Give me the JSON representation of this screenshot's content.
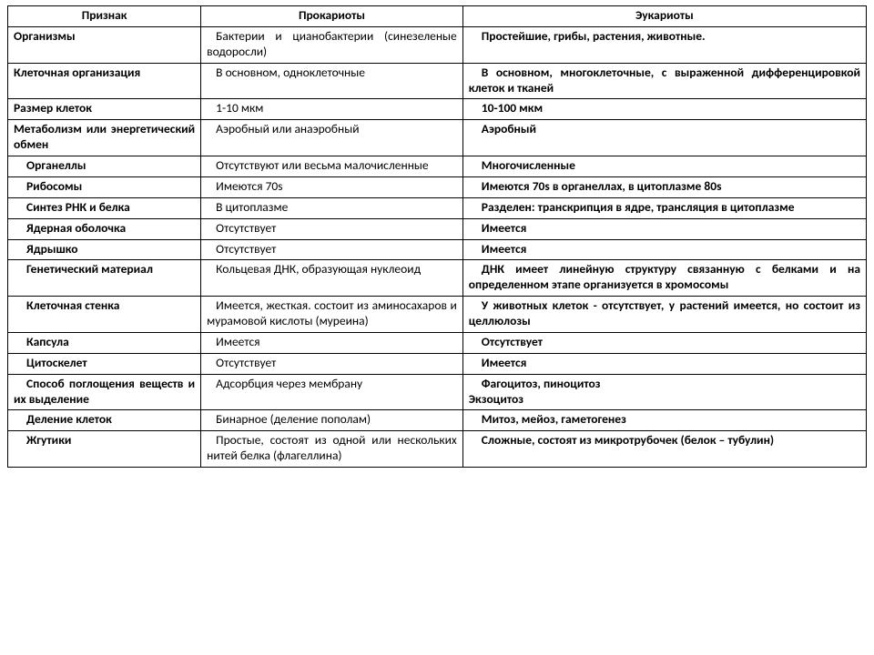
{
  "colors": {
    "border": "#000000",
    "text": "#000000",
    "background": "#ffffff"
  },
  "typography": {
    "font_family": "Calibri, Arial, sans-serif",
    "font_size_pt": 10,
    "header_weight": "bold",
    "cell_weight_col1": "bold",
    "cell_weight_col3": "bold"
  },
  "table": {
    "type": "table",
    "column_widths_pct": [
      22.5,
      30.5,
      47
    ],
    "headers": [
      "Признак",
      "Прокариоты",
      "Эукариоты"
    ],
    "rows": [
      {
        "a": "Организмы",
        "b": "Бактерии и цианобактерии (синезеленые водоросли)",
        "c": "Простейшие, грибы, растения, животные."
      },
      {
        "a": "Клеточная организация",
        "b": "В основном, одноклеточные",
        "c": "В основном, многоклеточные, с выраженной дифференцировкой клеток и тканей"
      },
      {
        "a": "Размер клеток",
        "b": "1-10 мкм",
        "c": "10-100 мкм"
      },
      {
        "a": "Метаболизм или энергетический обмен",
        "b": "Аэробный или анаэробный",
        "c": "Аэробный"
      },
      {
        "a": "Органеллы",
        "b": "Отсутствуют или весьма малочисленные",
        "c": "Многочисленные"
      },
      {
        "a": "Рибосомы",
        "b": "Имеются 70s",
        "c": "Имеются 70s в органеллах, в цитоплазме 80s"
      },
      {
        "a": "Синтез РНК и белка",
        "b": "В цитоплазме",
        "c": "Разделен: транскрипция в ядре, трансляция в цитоплазме"
      },
      {
        "a": "Ядерная оболочка",
        "b": "Отсутствует",
        "c": "Имеется"
      },
      {
        "a": "Ядрышко",
        "b": "Отсутствует",
        "c": "Имеется"
      },
      {
        "a": "Генетический материал",
        "b": "Кольцевая ДНК, образующая нуклеоид",
        "c": "ДНК имеет линейную структуру связанную с белками и на определенном этапе организуется в хромосомы"
      },
      {
        "a": "Клеточная стенка",
        "b": "Имеется, жесткая. состоит из аминосахаров и мурамовой кислоты (муреина)",
        "c": "У животных клеток - отсутствует, у растений имеется, но состоит из целлюлозы"
      },
      {
        "a": "Капсула",
        "b": "Имеется",
        "c": "Отсутствует"
      },
      {
        "a": "Цитоскелет",
        "b": "Отсутствует",
        "c": "Имеется"
      },
      {
        "a": "Способ поглощения веществ и их выделение",
        "b": "Адсорбция через мембрану",
        "c_line1": "Фагоцитоз, пиноцитоз",
        "c_line2": "Экзоцитоз"
      },
      {
        "a": "Деление клеток",
        "b": "Бинарное (деление пополам)",
        "c": "Митоз, мейоз, гаметогенез"
      },
      {
        "a": "Жгутики",
        "b": "Простые, состоят из одной или нескольких нитей белка (флагеллина)",
        "c": "Сложные, состоят из микротрубочек (белок – тубулин)"
      }
    ]
  }
}
